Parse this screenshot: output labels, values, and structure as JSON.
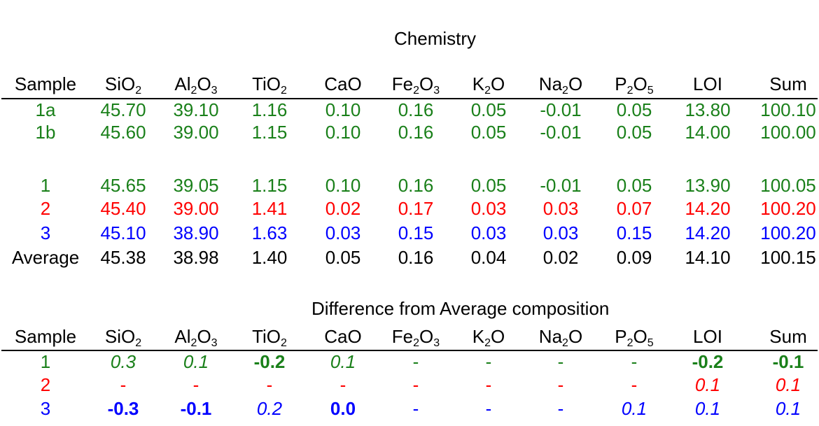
{
  "chemistry": {
    "title": "Chemistry",
    "header": [
      {
        "base": "Sample",
        "sub": "",
        "tail": ""
      },
      {
        "base": "SiO",
        "sub": "2",
        "tail": ""
      },
      {
        "base": "Al",
        "sub": "2",
        "tail": "O",
        "sub2": "3"
      },
      {
        "base": "TiO",
        "sub": "2",
        "tail": ""
      },
      {
        "base": "CaO",
        "sub": "",
        "tail": ""
      },
      {
        "base": "Fe",
        "sub": "2",
        "tail": "O",
        "sub2": "3"
      },
      {
        "base": "K",
        "sub": "2",
        "tail": "O"
      },
      {
        "base": "Na",
        "sub": "2",
        "tail": "O"
      },
      {
        "base": "P",
        "sub": "2",
        "tail": "O",
        "sub2": "5"
      },
      {
        "base": "LOI",
        "sub": "",
        "tail": ""
      },
      {
        "base": "Sum",
        "sub": "",
        "tail": ""
      }
    ],
    "rows": [
      {
        "color": "#1a801a",
        "cells": [
          "1a",
          "45.70",
          "39.10",
          "1.16",
          "0.10",
          "0.16",
          "0.05",
          "-0.01",
          "0.05",
          "13.80",
          "100.10"
        ]
      },
      {
        "color": "#1a801a",
        "cells": [
          "1b",
          "45.60",
          "39.00",
          "1.15",
          "0.10",
          "0.16",
          "0.05",
          "-0.01",
          "0.05",
          "14.00",
          "100.00"
        ]
      },
      {
        "color": "#1a801a",
        "cells": [
          "1",
          "45.65",
          "39.05",
          "1.15",
          "0.10",
          "0.16",
          "0.05",
          "-0.01",
          "0.05",
          "13.90",
          "100.05"
        ]
      },
      {
        "color": "#ff0000",
        "cells": [
          "2",
          "45.40",
          "39.00",
          "1.41",
          "0.02",
          "0.17",
          "0.03",
          "0.03",
          "0.07",
          "14.20",
          "100.20"
        ]
      },
      {
        "color": "#0000ff",
        "cells": [
          "3",
          "45.10",
          "38.90",
          "1.63",
          "0.03",
          "0.15",
          "0.03",
          "0.03",
          "0.15",
          "14.20",
          "100.20"
        ]
      },
      {
        "color": "#000000",
        "cells": [
          "Average",
          "45.38",
          "38.98",
          "1.40",
          "0.05",
          "0.16",
          "0.04",
          "0.02",
          "0.09",
          "14.10",
          "100.15"
        ]
      }
    ]
  },
  "difference": {
    "title": "Difference from Average composition",
    "rows": [
      {
        "color": "#1a801a",
        "cells": [
          {
            "v": "1",
            "s": ""
          },
          {
            "v": "0.3",
            "s": "i"
          },
          {
            "v": "0.1",
            "s": "i"
          },
          {
            "v": "-0.2",
            "s": "b"
          },
          {
            "v": "0.1",
            "s": "i"
          },
          {
            "v": "-",
            "s": ""
          },
          {
            "v": "-",
            "s": ""
          },
          {
            "v": "-",
            "s": ""
          },
          {
            "v": "-",
            "s": ""
          },
          {
            "v": "-0.2",
            "s": "b"
          },
          {
            "v": "-0.1",
            "s": "b"
          }
        ]
      },
      {
        "color": "#ff0000",
        "cells": [
          {
            "v": "2",
            "s": ""
          },
          {
            "v": "-",
            "s": ""
          },
          {
            "v": "-",
            "s": ""
          },
          {
            "v": "-",
            "s": ""
          },
          {
            "v": "-",
            "s": ""
          },
          {
            "v": "-",
            "s": ""
          },
          {
            "v": "-",
            "s": ""
          },
          {
            "v": "-",
            "s": ""
          },
          {
            "v": "-",
            "s": ""
          },
          {
            "v": "0.1",
            "s": "i"
          },
          {
            "v": "0.1",
            "s": "i"
          }
        ]
      },
      {
        "color": "#0000ff",
        "cells": [
          {
            "v": "3",
            "s": ""
          },
          {
            "v": "-0.3",
            "s": "b"
          },
          {
            "v": "-0.1",
            "s": "b"
          },
          {
            "v": "0.2",
            "s": "i"
          },
          {
            "v": "0.0",
            "s": "b"
          },
          {
            "v": "-",
            "s": ""
          },
          {
            "v": "-",
            "s": ""
          },
          {
            "v": "-",
            "s": ""
          },
          {
            "v": "0.1",
            "s": "i"
          },
          {
            "v": "0.1",
            "s": "i"
          },
          {
            "v": "0.1",
            "s": "i"
          }
        ]
      }
    ]
  }
}
